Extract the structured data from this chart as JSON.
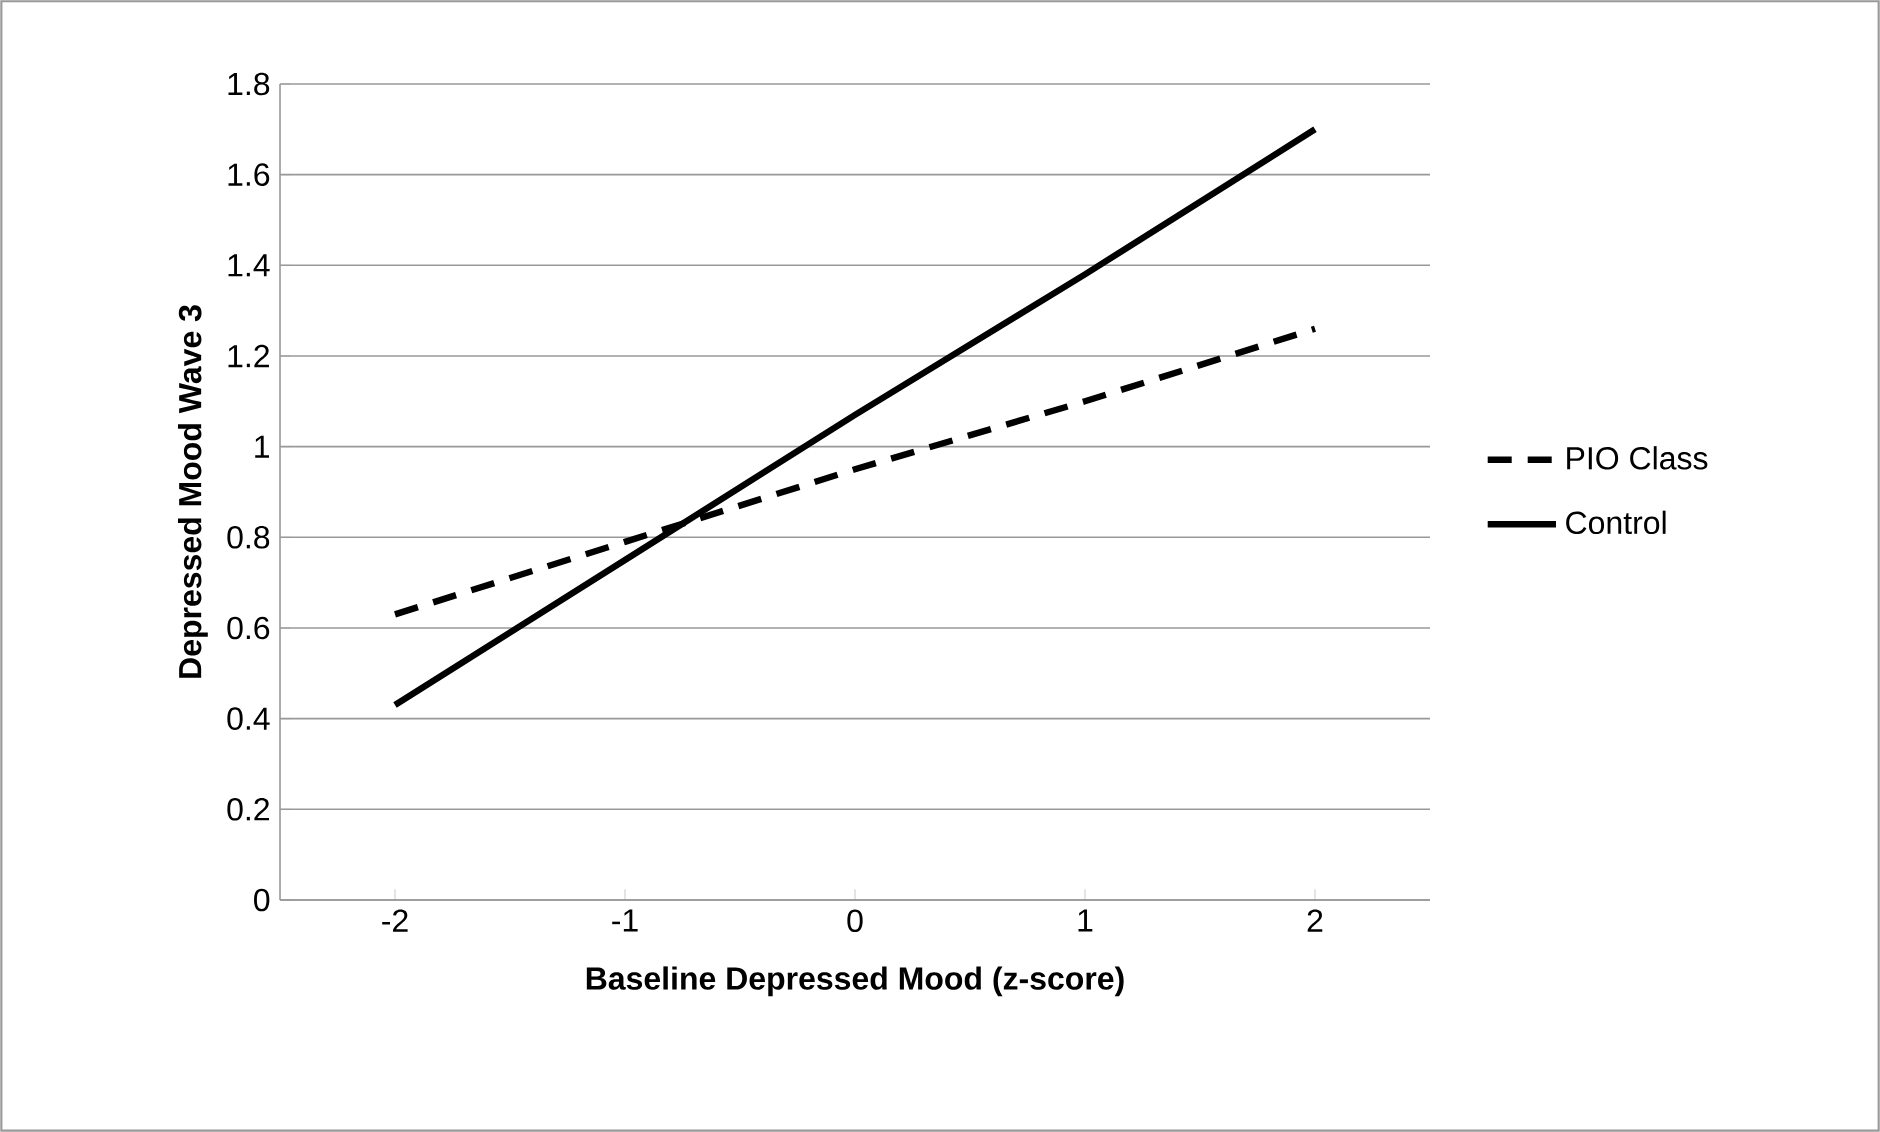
{
  "chart_data": {
    "type": "line",
    "xlabel": "Baseline Depressed Mood (z-score)",
    "ylabel": "Depressed Mood Wave 3",
    "categories": [
      "-2",
      "-1",
      "0",
      "1",
      "2"
    ],
    "series": [
      {
        "name": "PIO Class",
        "color": "#000000",
        "line_style": "dashed",
        "values": [
          0.63,
          0.79,
          0.95,
          1.1,
          1.26
        ]
      },
      {
        "name": "Control",
        "color": "#000000",
        "line_style": "solid",
        "values": [
          0.43,
          0.75,
          1.07,
          1.38,
          1.7
        ]
      }
    ],
    "ylim": [
      0,
      1.8
    ],
    "yticks": [
      0,
      0.2,
      0.4,
      0.6,
      0.8,
      1,
      1.2,
      1.4,
      1.6,
      1.8
    ],
    "grid": "y",
    "legend": "right"
  }
}
